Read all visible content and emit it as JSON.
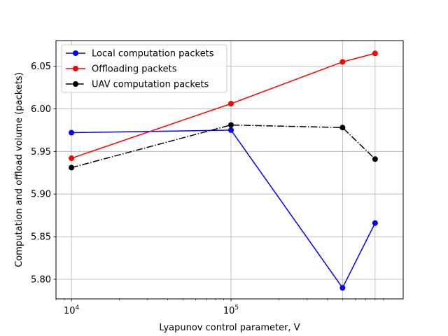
{
  "chart_data": {
    "type": "line",
    "title": "",
    "xlabel": "Lyapunov control parameter, V",
    "ylabel": "Computation and offload volume (packets)",
    "xscale": "log",
    "xlim": [
      8000,
      1200000
    ],
    "ylim": [
      5.777,
      6.08
    ],
    "x_ticks_major": [
      {
        "value": 10000,
        "base": "10",
        "exp": "4"
      },
      {
        "value": 100000,
        "base": "10",
        "exp": "5"
      }
    ],
    "y_ticks": [
      "5.80",
      "5.85",
      "5.90",
      "5.95",
      "6.00",
      "6.05"
    ],
    "grid": true,
    "legend_position": "upper-left",
    "x": [
      10000,
      100000,
      500000,
      800000
    ],
    "series": [
      {
        "name": "Local computation packets",
        "color": "#0000ff",
        "linestyle": "solid",
        "values": [
          5.972,
          5.975,
          5.79,
          5.866
        ]
      },
      {
        "name": "Offloading packets",
        "color": "#ff0000",
        "linestyle": "solid",
        "values": [
          5.942,
          6.006,
          6.055,
          6.065
        ]
      },
      {
        "name": "UAV computation packets",
        "color": "#000000",
        "linestyle": "dashdot",
        "values": [
          5.931,
          5.981,
          5.978,
          5.941
        ]
      }
    ]
  }
}
